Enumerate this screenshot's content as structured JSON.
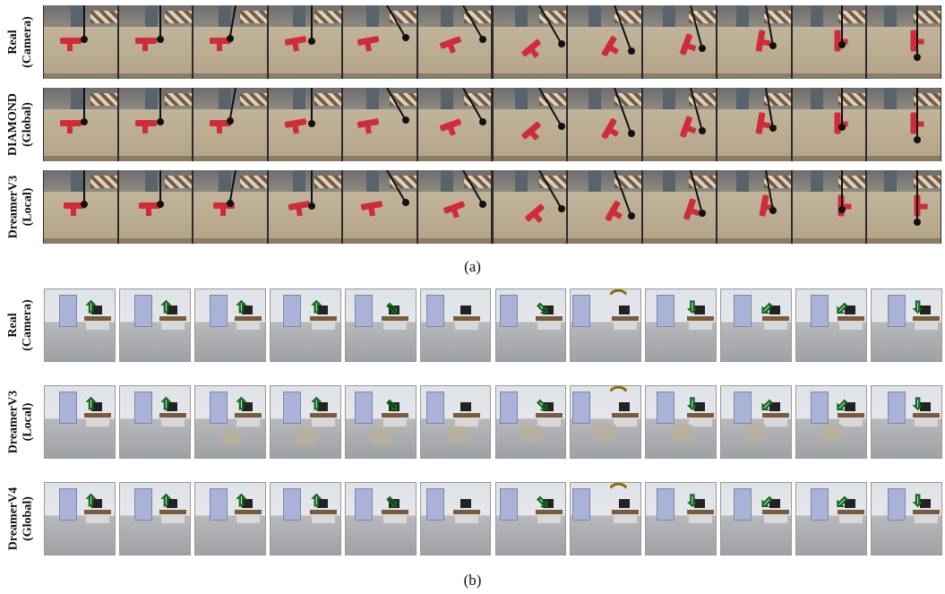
{
  "panel_a": {
    "caption": "(a)",
    "rows": [
      {
        "label_line1": "Real",
        "label_line2": "(Camera)"
      },
      {
        "label_line1": "DIAMOND",
        "label_line2": "(Global)"
      },
      {
        "label_line1": "DreamerV3",
        "label_line2": "(Local)"
      }
    ],
    "frame_count": 12
  },
  "panel_b": {
    "caption": "(b)",
    "rows": [
      {
        "label_line1": "Real",
        "label_line2": "(Camera)"
      },
      {
        "label_line1": "DreamerV3",
        "label_line2": "(Local)"
      },
      {
        "label_line1": "DreamerV4",
        "label_line2": "(Global)"
      }
    ],
    "frame_count": 12,
    "arrow_glyphs": [
      "⇧",
      "⇧",
      "⇧",
      "⇧",
      "⬂",
      "",
      "⬂",
      "⌒",
      "⇩",
      "⬃",
      "⬃",
      "⇩"
    ],
    "arrow_colors": [
      "#22c83a",
      "#f3d52a"
    ]
  }
}
